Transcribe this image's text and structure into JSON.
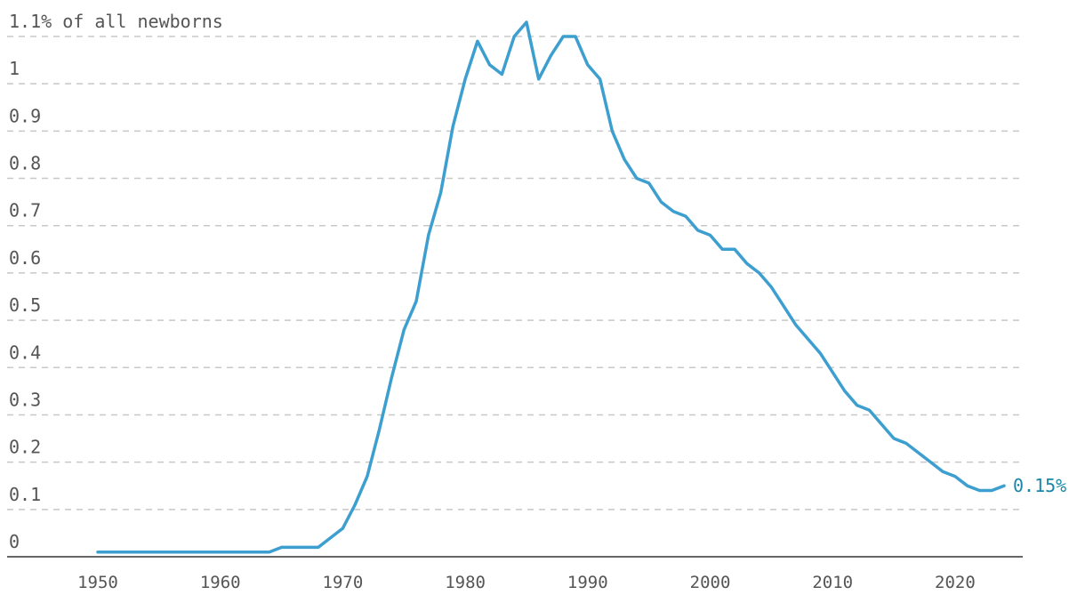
{
  "chart_data": {
    "type": "line",
    "title": "",
    "xlabel": "",
    "ylabel": "",
    "xlim": [
      1950,
      2024
    ],
    "ylim": [
      0,
      1.1
    ],
    "y_ticks": [
      {
        "value": 0,
        "label": "0"
      },
      {
        "value": 0.1,
        "label": "0.1"
      },
      {
        "value": 0.2,
        "label": "0.2"
      },
      {
        "value": 0.3,
        "label": "0.3"
      },
      {
        "value": 0.4,
        "label": "0.4"
      },
      {
        "value": 0.5,
        "label": "0.5"
      },
      {
        "value": 0.6,
        "label": "0.6"
      },
      {
        "value": 0.7,
        "label": "0.7"
      },
      {
        "value": 0.8,
        "label": "0.8"
      },
      {
        "value": 0.9,
        "label": "0.9"
      },
      {
        "value": 1.0,
        "label": "1"
      },
      {
        "value": 1.1,
        "label": "1.1% of all newborns"
      }
    ],
    "x_ticks": [
      {
        "value": 1950,
        "label": "1950"
      },
      {
        "value": 1960,
        "label": "1960"
      },
      {
        "value": 1970,
        "label": "1970"
      },
      {
        "value": 1980,
        "label": "1980"
      },
      {
        "value": 1990,
        "label": "1990"
      },
      {
        "value": 2000,
        "label": "2000"
      },
      {
        "value": 2010,
        "label": "2010"
      },
      {
        "value": 2020,
        "label": "2020"
      }
    ],
    "grid": true,
    "end_label": "0.15%",
    "colors": {
      "line": "#3d9fd0",
      "end_label": "#1a86a8",
      "axis": "#333333",
      "grid": "#c8c8c8"
    },
    "series": [
      {
        "x": [
          1950,
          1951,
          1952,
          1953,
          1954,
          1955,
          1956,
          1957,
          1958,
          1959,
          1960,
          1961,
          1962,
          1963,
          1964,
          1965,
          1966,
          1967,
          1968,
          1969,
          1970,
          1971,
          1972,
          1973,
          1974,
          1975,
          1976,
          1977,
          1978,
          1979,
          1980,
          1981,
          1982,
          1983,
          1984,
          1985,
          1986,
          1987,
          1988,
          1989,
          1990,
          1991,
          1992,
          1993,
          1994,
          1995,
          1996,
          1997,
          1998,
          1999,
          2000,
          2001,
          2002,
          2003,
          2004,
          2005,
          2006,
          2007,
          2008,
          2009,
          2010,
          2011,
          2012,
          2013,
          2014,
          2015,
          2016,
          2017,
          2018,
          2019,
          2020,
          2021,
          2022,
          2023,
          2024
        ],
        "values": [
          0.01,
          0.01,
          0.01,
          0.01,
          0.01,
          0.01,
          0.01,
          0.01,
          0.01,
          0.01,
          0.01,
          0.01,
          0.01,
          0.01,
          0.01,
          0.02,
          0.02,
          0.02,
          0.02,
          0.04,
          0.06,
          0.11,
          0.17,
          0.27,
          0.38,
          0.48,
          0.54,
          0.68,
          0.77,
          0.91,
          1.01,
          1.09,
          1.04,
          1.02,
          1.1,
          1.13,
          1.01,
          1.06,
          1.1,
          1.1,
          1.04,
          1.01,
          0.9,
          0.84,
          0.8,
          0.79,
          0.75,
          0.73,
          0.72,
          0.69,
          0.68,
          0.65,
          0.65,
          0.62,
          0.6,
          0.57,
          0.53,
          0.49,
          0.46,
          0.43,
          0.39,
          0.35,
          0.32,
          0.31,
          0.28,
          0.25,
          0.24,
          0.22,
          0.2,
          0.18,
          0.17,
          0.15,
          0.14,
          0.14,
          0.15
        ]
      }
    ]
  }
}
